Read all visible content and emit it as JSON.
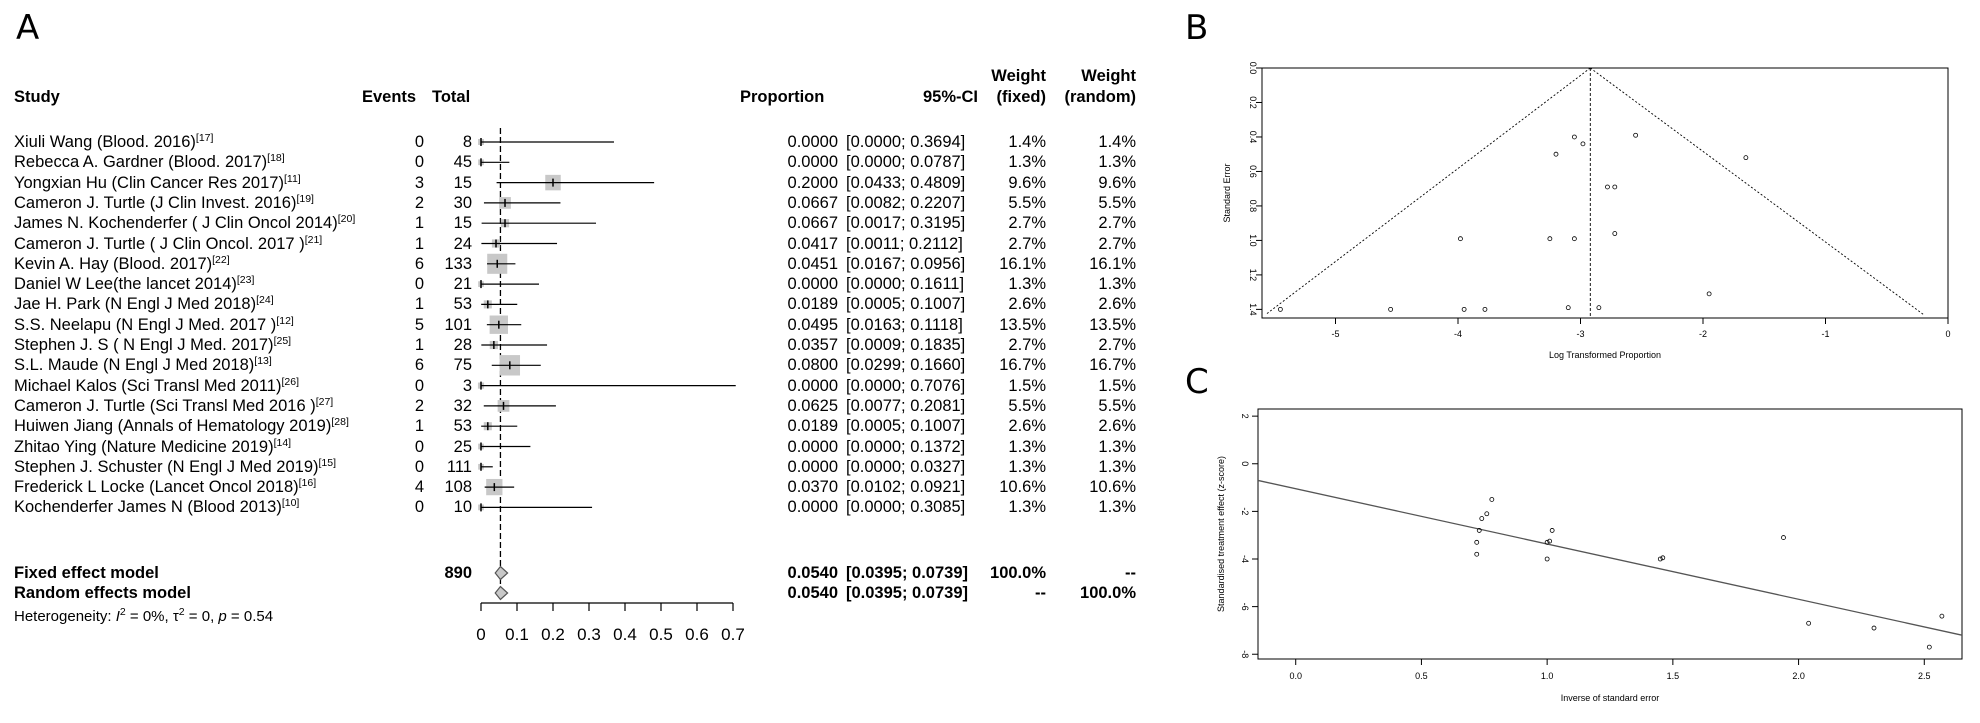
{
  "panels": {
    "a": "A",
    "b": "B",
    "c": "C"
  },
  "forest": {
    "headers": {
      "study": "Study",
      "events": "Events",
      "total": "Total",
      "proportion": "Proportion",
      "ci": "95%-CI",
      "weight": "Weight",
      "fixed": "(fixed)",
      "random": "(random)"
    },
    "studies": [
      {
        "name": "Xiuli Wang (Blood. 2016)",
        "ref": "[17]",
        "events": "0",
        "total": "8",
        "prop": "0.0000",
        "ci": "[0.0000; 0.3694]",
        "wf": "1.4%",
        "wr": "1.4%",
        "p": 0.0,
        "lo": 0.0,
        "hi": 0.3694
      },
      {
        "name": "Rebecca A. Gardner (Blood. 2017)",
        "ref": "[18]",
        "events": "0",
        "total": "45",
        "prop": "0.0000",
        "ci": "[0.0000; 0.0787]",
        "wf": "1.3%",
        "wr": "1.3%",
        "p": 0.0,
        "lo": 0.0,
        "hi": 0.0787
      },
      {
        "name": "Yongxian Hu (Clin Cancer Res 2017)",
        "ref": "[11]",
        "events": "3",
        "total": "15",
        "prop": "0.2000",
        "ci": "[0.0433; 0.4809]",
        "wf": "9.6%",
        "wr": "9.6%",
        "p": 0.2,
        "lo": 0.0433,
        "hi": 0.4809
      },
      {
        "name": "Cameron J. Turtle (J Clin Invest. 2016)",
        "ref": "[19]",
        "events": "2",
        "total": "30",
        "prop": "0.0667",
        "ci": "[0.0082; 0.2207]",
        "wf": "5.5%",
        "wr": "5.5%",
        "p": 0.0667,
        "lo": 0.0082,
        "hi": 0.2207
      },
      {
        "name": "James N. Kochenderfer ( J Clin Oncol 2014)",
        "ref": "[20]",
        "events": "1",
        "total": "15",
        "prop": "0.0667",
        "ci": "[0.0017; 0.3195]",
        "wf": "2.7%",
        "wr": "2.7%",
        "p": 0.0667,
        "lo": 0.0017,
        "hi": 0.3195
      },
      {
        "name": "Cameron J. Turtle ( J Clin Oncol. 2017 )",
        "ref": "[21]",
        "events": "1",
        "total": "24",
        "prop": "0.0417",
        "ci": "[0.0011; 0.2112]",
        "wf": "2.7%",
        "wr": "2.7%",
        "p": 0.0417,
        "lo": 0.0011,
        "hi": 0.2112
      },
      {
        "name": "Kevin A. Hay (Blood. 2017)",
        "ref": "[22]",
        "events": "6",
        "total": "133",
        "prop": "0.0451",
        "ci": "[0.0167; 0.0956]",
        "wf": "16.1%",
        "wr": "16.1%",
        "p": 0.0451,
        "lo": 0.0167,
        "hi": 0.0956
      },
      {
        "name": "Daniel W Lee(the lancet 2014)",
        "ref": "[23]",
        "events": "0",
        "total": "21",
        "prop": "0.0000",
        "ci": "[0.0000; 0.1611]",
        "wf": "1.3%",
        "wr": "1.3%",
        "p": 0.0,
        "lo": 0.0,
        "hi": 0.1611
      },
      {
        "name": "Jae H. Park (N Engl J Med 2018)",
        "ref": "[24]",
        "events": "1",
        "total": "53",
        "prop": "0.0189",
        "ci": "[0.0005; 0.1007]",
        "wf": "2.6%",
        "wr": "2.6%",
        "p": 0.0189,
        "lo": 0.0005,
        "hi": 0.1007
      },
      {
        "name": "S.S. Neelapu (N Engl J Med. 2017 )",
        "ref": "[12]",
        "events": "5",
        "total": "101",
        "prop": "0.0495",
        "ci": "[0.0163; 0.1118]",
        "wf": "13.5%",
        "wr": "13.5%",
        "p": 0.0495,
        "lo": 0.0163,
        "hi": 0.1118
      },
      {
        "name": "Stephen J. S ( N  Engl J Med. 2017)",
        "ref": "[25]",
        "events": "1",
        "total": "28",
        "prop": "0.0357",
        "ci": "[0.0009; 0.1835]",
        "wf": "2.7%",
        "wr": "2.7%",
        "p": 0.0357,
        "lo": 0.0009,
        "hi": 0.1835
      },
      {
        "name": "S.L. Maude (N Engl J Med 2018)",
        "ref": "[13]",
        "events": "6",
        "total": "75",
        "prop": "0.0800",
        "ci": "[0.0299; 0.1660]",
        "wf": "16.7%",
        "wr": "16.7%",
        "p": 0.08,
        "lo": 0.0299,
        "hi": 0.166
      },
      {
        "name": "Michael Kalos (Sci Transl Med  2011)",
        "ref": "[26]",
        "events": "0",
        "total": "3",
        "prop": "0.0000",
        "ci": "[0.0000; 0.7076]",
        "wf": "1.5%",
        "wr": "1.5%",
        "p": 0.0,
        "lo": 0.0,
        "hi": 0.7076
      },
      {
        "name": "Cameron J. Turtle (Sci Transl Med 2016 )",
        "ref": "[27]",
        "events": "2",
        "total": "32",
        "prop": "0.0625",
        "ci": "[0.0077; 0.2081]",
        "wf": "5.5%",
        "wr": "5.5%",
        "p": 0.0625,
        "lo": 0.0077,
        "hi": 0.2081
      },
      {
        "name": "Huiwen Jiang (Annals of Hematology 2019)",
        "ref": "[28]",
        "events": "1",
        "total": "53",
        "prop": "0.0189",
        "ci": "[0.0005; 0.1007]",
        "wf": "2.6%",
        "wr": "2.6%",
        "p": 0.0189,
        "lo": 0.0005,
        "hi": 0.1007
      },
      {
        "name": "Zhitao Ying (Nature Medicine 2019)",
        "ref": "[14]",
        "events": "0",
        "total": "25",
        "prop": "0.0000",
        "ci": "[0.0000; 0.1372]",
        "wf": "1.3%",
        "wr": "1.3%",
        "p": 0.0,
        "lo": 0.0,
        "hi": 0.1372
      },
      {
        "name": "Stephen J. Schuster (N Engl J Med 2019)",
        "ref": "[15]",
        "events": "0",
        "total": "111",
        "prop": "0.0000",
        "ci": "[0.0000; 0.0327]",
        "wf": "1.3%",
        "wr": "1.3%",
        "p": 0.0,
        "lo": 0.0,
        "hi": 0.0327
      },
      {
        "name": "Frederick L Locke (Lancet Oncol  2018)",
        "ref": "[16]",
        "events": "4",
        "total": "108",
        "prop": "0.0370",
        "ci": "[0.0102; 0.0921]",
        "wf": "10.6%",
        "wr": "10.6%",
        "p": 0.037,
        "lo": 0.0102,
        "hi": 0.0921
      },
      {
        "name": "Kochenderfer James N (Blood 2013)",
        "ref": "[10]",
        "events": "0",
        "total": "10",
        "prop": "0.0000",
        "ci": "[0.0000; 0.3085]",
        "wf": "1.3%",
        "wr": "1.3%",
        "p": 0.0,
        "lo": 0.0,
        "hi": 0.3085
      }
    ],
    "fixed": {
      "label": "Fixed effect model",
      "total": "890",
      "prop": "0.0540",
      "ci": "[0.0395; 0.0739]",
      "wf": "100.0%",
      "wr": "--",
      "est": 0.054,
      "lo": 0.0395,
      "hi": 0.0739
    },
    "random": {
      "label": "Random effects model",
      "prop": "0.0540",
      "ci": "[0.0395; 0.0739]",
      "wf": "--",
      "wr": "100.0%",
      "est": 0.054,
      "lo": 0.0395,
      "hi": 0.0739
    },
    "heterogeneity": {
      "prefix": "Heterogeneity: ",
      "i2": "I",
      "sq1": "2",
      "mid1": " = 0%, ",
      "tau": "τ",
      "sq2": "2",
      "mid2": " = 0, ",
      "p": "p",
      "tail": " = 0.54"
    },
    "axis_ticks": [
      "0",
      "0.1",
      "0.2",
      "0.3",
      "0.4",
      "0.5",
      "0.6",
      "0.7"
    ]
  },
  "funnel": {
    "xlabel": "Log Transformed Proportion",
    "ylabel": "Standard Error",
    "xticks": [
      "-5",
      "-4",
      "-3",
      "-2",
      "-1",
      "0"
    ],
    "yticks": [
      "0.0",
      "0.2",
      "0.4",
      "0.6",
      "0.8",
      "1.0",
      "1.2",
      "1.4"
    ]
  },
  "galbraith": {
    "xlabel": "Inverse of standard error",
    "ylabel": "Standardised treatment effect (z-score)",
    "xticks": [
      "0.0",
      "0.5",
      "1.0",
      "1.5",
      "2.0",
      "2.5"
    ],
    "yticks": [
      "2",
      "0",
      "-2",
      "-4",
      "-6",
      "-8"
    ]
  },
  "chart_data": [
    {
      "type": "forest",
      "xlim": [
        0,
        0.7
      ],
      "note": "point estimates and 95% CIs listed in forest.studies; pooled estimate 0.0540 [0.0395; 0.0739]"
    },
    {
      "type": "scatter",
      "xlim": [
        -5.6,
        0
      ],
      "ylim": [
        1.45,
        0
      ],
      "funnel_apex": [
        -2.92,
        0
      ],
      "points": [
        [
          -3.05,
          0.4
        ],
        [
          -2.98,
          0.44
        ],
        [
          -3.2,
          0.5
        ],
        [
          -2.55,
          0.39
        ],
        [
          -1.65,
          0.52
        ],
        [
          -2.78,
          0.69
        ],
        [
          -2.72,
          0.69
        ],
        [
          -3.25,
          0.99
        ],
        [
          -3.05,
          0.99
        ],
        [
          -3.98,
          0.99
        ],
        [
          -2.72,
          0.96
        ],
        [
          -5.45,
          1.4
        ],
        [
          -4.55,
          1.4
        ],
        [
          -3.95,
          1.4
        ],
        [
          -3.78,
          1.4
        ],
        [
          -3.1,
          1.39
        ],
        [
          -2.85,
          1.39
        ],
        [
          -1.95,
          1.31
        ]
      ]
    },
    {
      "type": "scatter",
      "xlim": [
        -0.15,
        2.65
      ],
      "ylim": [
        -8.2,
        2.3
      ],
      "regression_line": [
        [
          -0.15,
          -0.7
        ],
        [
          2.65,
          -7.2
        ]
      ],
      "points": [
        [
          0.72,
          -3.8
        ],
        [
          0.72,
          -3.3
        ],
        [
          0.73,
          -2.8
        ],
        [
          0.74,
          -2.3
        ],
        [
          0.76,
          -2.1
        ],
        [
          0.78,
          -1.5
        ],
        [
          1.0,
          -4.0
        ],
        [
          1.0,
          -3.3
        ],
        [
          1.01,
          -3.25
        ],
        [
          1.02,
          -2.8
        ],
        [
          1.45,
          -4.0
        ],
        [
          1.46,
          -3.95
        ],
        [
          1.94,
          -3.1
        ],
        [
          2.04,
          -6.7
        ],
        [
          2.3,
          -6.9
        ],
        [
          2.52,
          -7.7
        ],
        [
          2.57,
          -6.4
        ]
      ]
    }
  ]
}
